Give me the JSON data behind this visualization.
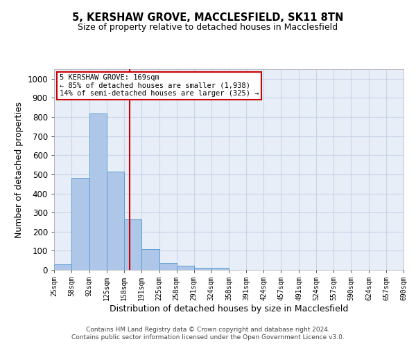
{
  "title1": "5, KERSHAW GROVE, MACCLESFIELD, SK11 8TN",
  "title2": "Size of property relative to detached houses in Macclesfield",
  "xlabel": "Distribution of detached houses by size in Macclesfield",
  "ylabel": "Number of detached properties",
  "bar_left_edges": [
    25,
    58,
    92,
    125,
    158,
    191,
    225,
    258,
    291,
    324,
    358,
    391,
    424,
    457,
    491,
    524,
    557,
    590,
    624,
    657
  ],
  "bar_widths": [
    33,
    34,
    33,
    33,
    33,
    34,
    33,
    33,
    33,
    34,
    33,
    33,
    33,
    34,
    33,
    33,
    33,
    34,
    33,
    33
  ],
  "bar_heights": [
    30,
    480,
    820,
    515,
    265,
    110,
    38,
    20,
    10,
    10,
    0,
    0,
    0,
    0,
    0,
    0,
    0,
    0,
    0,
    0
  ],
  "bar_color": "#aec6e8",
  "bar_edge_color": "#5a9fd4",
  "vline_x": 169,
  "vline_color": "#cc0000",
  "annotation_text": "5 KERSHAW GROVE: 169sqm\n← 85% of detached houses are smaller (1,938)\n14% of semi-detached houses are larger (325) →",
  "annotation_box_color": "#cc0000",
  "ylim": [
    0,
    1050
  ],
  "yticks": [
    0,
    100,
    200,
    300,
    400,
    500,
    600,
    700,
    800,
    900,
    1000
  ],
  "xlim": [
    25,
    690
  ],
  "xtick_labels": [
    "25sqm",
    "58sqm",
    "92sqm",
    "125sqm",
    "158sqm",
    "191sqm",
    "225sqm",
    "258sqm",
    "291sqm",
    "324sqm",
    "358sqm",
    "391sqm",
    "424sqm",
    "457sqm",
    "491sqm",
    "524sqm",
    "557sqm",
    "590sqm",
    "624sqm",
    "657sqm",
    "690sqm"
  ],
  "xtick_positions": [
    25,
    58,
    92,
    125,
    158,
    191,
    225,
    258,
    291,
    324,
    358,
    391,
    424,
    457,
    491,
    524,
    557,
    590,
    624,
    657,
    690
  ],
  "grid_color": "#c8d4e8",
  "bg_color": "#e8eef8",
  "footer_line1": "Contains HM Land Registry data © Crown copyright and database right 2024.",
  "footer_line2": "Contains public sector information licensed under the Open Government Licence v3.0."
}
